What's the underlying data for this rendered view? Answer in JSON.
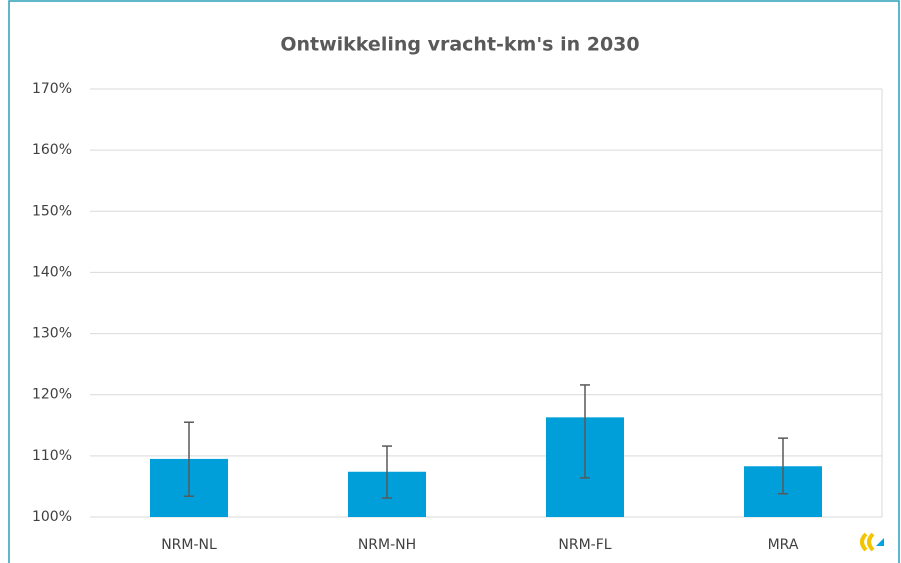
{
  "chart_data": {
    "type": "bar",
    "title": "Ontwikkeling vracht-km's in 2030",
    "categories": [
      "NRM-NL",
      "NRM-NH",
      "NRM-FL",
      "MRA"
    ],
    "values": [
      109.5,
      107.4,
      116.3,
      108.3
    ],
    "error_minus": [
      6.1,
      4.3,
      9.9,
      4.5
    ],
    "error_plus": [
      6.0,
      4.2,
      5.3,
      4.6
    ],
    "color": "#009fda",
    "ylim": [
      100,
      170
    ],
    "yticks": [
      {
        "value": 100,
        "label": "100%"
      },
      {
        "value": 110,
        "label": "110%"
      },
      {
        "value": 120,
        "label": "120%"
      },
      {
        "value": 130,
        "label": "130%"
      },
      {
        "value": 140,
        "label": "140%"
      },
      {
        "value": 150,
        "label": "150%"
      },
      {
        "value": 160,
        "label": "160%"
      },
      {
        "value": 170,
        "label": "170%"
      }
    ],
    "grid": true
  }
}
